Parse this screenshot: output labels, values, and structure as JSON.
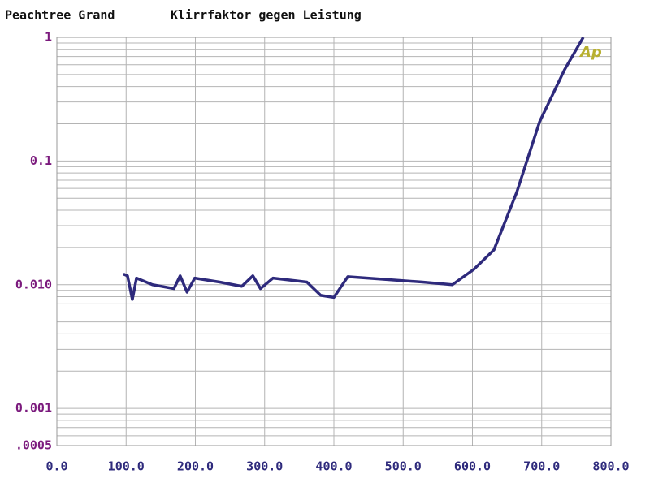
{
  "chart_data": {
    "type": "line",
    "title": "Peachtree Grand",
    "subtitle": "Klirrfaktor  gegen  Leistung",
    "logo": "Ap",
    "yscale": "log",
    "grid": true,
    "xlim": [
      0,
      800
    ],
    "xticks": [
      {
        "value": 0,
        "label": "0.0"
      },
      {
        "value": 100,
        "label": "100.0"
      },
      {
        "value": 200,
        "label": "200.0"
      },
      {
        "value": 300,
        "label": "300.0"
      },
      {
        "value": 400,
        "label": "400.0"
      },
      {
        "value": 500,
        "label": "500.0"
      },
      {
        "value": 600,
        "label": "600.0"
      },
      {
        "value": 700,
        "label": "700.0"
      },
      {
        "value": 800,
        "label": "800.0"
      }
    ],
    "ylim": [
      0.0005,
      1
    ],
    "yticks": [
      {
        "value": 0.0005,
        "label": ".0005"
      },
      0.001,
      {
        "value": 0.01,
        "label": "0.010"
      },
      0.1,
      1
    ],
    "x": [
      96,
      102,
      109,
      115,
      138,
      169,
      178,
      188,
      199,
      235,
      267,
      283,
      294,
      312,
      361,
      381,
      400,
      420,
      469,
      528,
      571,
      602,
      631,
      664,
      697,
      733,
      760
    ],
    "series": [
      {
        "color": "#2e2a7c",
        "values": [
          0.0122,
          0.0118,
          0.0076,
          0.0113,
          0.01,
          0.0093,
          0.0118,
          0.0087,
          0.0113,
          0.0105,
          0.0097,
          0.0118,
          0.0093,
          0.0113,
          0.0105,
          0.0082,
          0.0079,
          0.0116,
          0.0111,
          0.0105,
          0.01,
          0.0133,
          0.0191,
          0.056,
          0.208,
          0.547,
          1.0
        ]
      }
    ]
  }
}
